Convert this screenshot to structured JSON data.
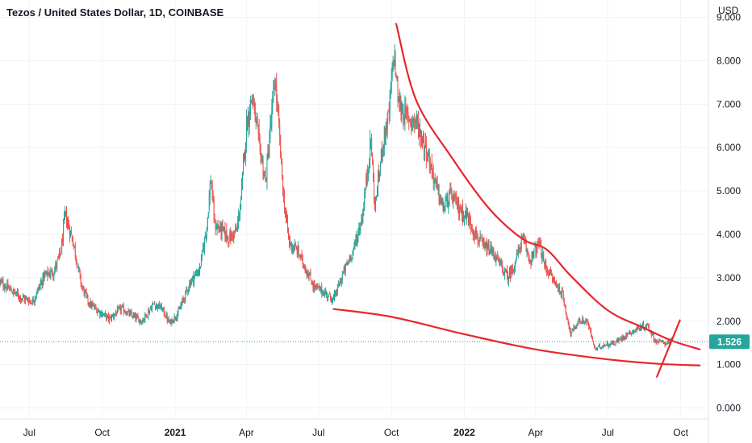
{
  "chart_data": {
    "type": "candlestick",
    "title": "Tezos / United States Dollar, 1D, COINBASE",
    "currency_label": "USD",
    "last_price": "1.526",
    "ylim": [
      -0.25,
      9.4
    ],
    "y_ticks": [
      "0.000",
      "1.000",
      "2.000",
      "3.000",
      "4.000",
      "5.000",
      "6.000",
      "7.000",
      "8.000",
      "9.000"
    ],
    "y_tick_values": [
      0,
      1,
      2,
      3,
      4,
      5,
      6,
      7,
      8,
      9
    ],
    "x_ticks": [
      {
        "label": "Jul",
        "date": "2020-07-01",
        "bold": false
      },
      {
        "label": "Oct",
        "date": "2020-10-01",
        "bold": false
      },
      {
        "label": "2021",
        "date": "2021-01-01",
        "bold": true
      },
      {
        "label": "Apr",
        "date": "2021-04-01",
        "bold": false
      },
      {
        "label": "Jul",
        "date": "2021-07-01",
        "bold": false
      },
      {
        "label": "Oct",
        "date": "2021-10-01",
        "bold": false
      },
      {
        "label": "2022",
        "date": "2022-01-01",
        "bold": true
      },
      {
        "label": "Apr",
        "date": "2022-04-01",
        "bold": false
      },
      {
        "label": "Jul",
        "date": "2022-07-01",
        "bold": false
      },
      {
        "label": "Oct",
        "date": "2022-10-01",
        "bold": false
      }
    ],
    "x_range": [
      "2020-05-25",
      "2022-11-05"
    ],
    "price_path": [
      [
        "2020-05-25",
        2.9
      ],
      [
        "2020-06-05",
        2.75
      ],
      [
        "2020-06-20",
        2.55
      ],
      [
        "2020-07-05",
        2.45
      ],
      [
        "2020-07-20",
        3.05
      ],
      [
        "2020-08-01",
        3.15
      ],
      [
        "2020-08-10",
        3.6
      ],
      [
        "2020-08-15",
        4.45
      ],
      [
        "2020-08-25",
        3.85
      ],
      [
        "2020-09-05",
        2.8
      ],
      [
        "2020-09-15",
        2.4
      ],
      [
        "2020-09-25",
        2.25
      ],
      [
        "2020-10-10",
        2.05
      ],
      [
        "2020-10-25",
        2.3
      ],
      [
        "2020-11-05",
        2.15
      ],
      [
        "2020-11-20",
        2.0
      ],
      [
        "2020-12-05",
        2.4
      ],
      [
        "2020-12-15",
        2.3
      ],
      [
        "2020-12-25",
        1.95
      ],
      [
        "2021-01-05",
        2.2
      ],
      [
        "2021-01-20",
        2.9
      ],
      [
        "2021-02-01",
        3.2
      ],
      [
        "2021-02-10",
        4.2
      ],
      [
        "2021-02-15",
        5.3
      ],
      [
        "2021-02-20",
        4.2
      ],
      [
        "2021-03-01",
        4.1
      ],
      [
        "2021-03-10",
        3.9
      ],
      [
        "2021-03-20",
        4.1
      ],
      [
        "2021-03-25",
        4.8
      ],
      [
        "2021-04-01",
        6.5
      ],
      [
        "2021-04-08",
        7.2
      ],
      [
        "2021-04-15",
        6.3
      ],
      [
        "2021-04-25",
        5.2
      ],
      [
        "2021-05-01",
        6.4
      ],
      [
        "2021-05-07",
        7.6
      ],
      [
        "2021-05-12",
        6.4
      ],
      [
        "2021-05-18",
        4.8
      ],
      [
        "2021-05-25",
        3.8
      ],
      [
        "2021-06-05",
        3.6
      ],
      [
        "2021-06-15",
        3.2
      ],
      [
        "2021-06-25",
        2.8
      ],
      [
        "2021-07-05",
        2.7
      ],
      [
        "2021-07-20",
        2.5
      ],
      [
        "2021-08-01",
        3.1
      ],
      [
        "2021-08-15",
        3.7
      ],
      [
        "2021-08-25",
        4.4
      ],
      [
        "2021-09-01",
        5.5
      ],
      [
        "2021-09-05",
        6.2
      ],
      [
        "2021-09-10",
        4.6
      ],
      [
        "2021-09-20",
        6.1
      ],
      [
        "2021-09-28",
        6.8
      ],
      [
        "2021-10-04",
        8.2
      ],
      [
        "2021-10-10",
        7.0
      ],
      [
        "2021-10-20",
        6.7
      ],
      [
        "2021-11-01",
        6.6
      ],
      [
        "2021-11-15",
        5.9
      ],
      [
        "2021-11-25",
        5.2
      ],
      [
        "2021-12-05",
        4.6
      ],
      [
        "2021-12-15",
        4.9
      ],
      [
        "2021-12-25",
        4.6
      ],
      [
        "2022-01-05",
        4.4
      ],
      [
        "2022-01-15",
        4.0
      ],
      [
        "2022-01-25",
        3.7
      ],
      [
        "2022-02-05",
        3.6
      ],
      [
        "2022-02-15",
        3.3
      ],
      [
        "2022-02-25",
        3.0
      ],
      [
        "2022-03-05",
        3.3
      ],
      [
        "2022-03-15",
        3.9
      ],
      [
        "2022-03-25",
        3.4
      ],
      [
        "2022-04-05",
        3.8
      ],
      [
        "2022-04-12",
        3.3
      ],
      [
        "2022-04-25",
        2.9
      ],
      [
        "2022-05-05",
        2.6
      ],
      [
        "2022-05-15",
        1.7
      ],
      [
        "2022-05-25",
        2.0
      ],
      [
        "2022-06-05",
        2.0
      ],
      [
        "2022-06-15",
        1.35
      ],
      [
        "2022-06-25",
        1.45
      ],
      [
        "2022-07-10",
        1.5
      ],
      [
        "2022-07-25",
        1.7
      ],
      [
        "2022-08-10",
        1.85
      ],
      [
        "2022-08-20",
        1.9
      ],
      [
        "2022-08-30",
        1.55
      ],
      [
        "2022-09-10",
        1.5
      ],
      [
        "2022-09-20",
        1.526
      ]
    ],
    "annotations": [
      {
        "type": "curve",
        "name": "upper-resistance-curve",
        "color": "#e8262d",
        "points": [
          [
            "2021-10-07",
            8.85
          ],
          [
            "2021-11-01",
            7.1
          ],
          [
            "2021-12-15",
            5.8
          ],
          [
            "2022-02-01",
            4.6
          ],
          [
            "2022-03-15",
            3.9
          ],
          [
            "2022-04-15",
            3.65
          ],
          [
            "2022-05-15",
            3.05
          ],
          [
            "2022-07-01",
            2.25
          ],
          [
            "2022-08-15",
            1.85
          ],
          [
            "2022-09-20",
            1.55
          ],
          [
            "2022-10-25",
            1.35
          ]
        ]
      },
      {
        "type": "curve",
        "name": "lower-support-curve",
        "color": "#e8262d",
        "points": [
          [
            "2021-07-20",
            2.28
          ],
          [
            "2021-10-01",
            2.1
          ],
          [
            "2022-01-01",
            1.7
          ],
          [
            "2022-04-01",
            1.35
          ],
          [
            "2022-07-01",
            1.12
          ],
          [
            "2022-09-01",
            1.02
          ],
          [
            "2022-10-25",
            0.98
          ]
        ]
      },
      {
        "type": "line",
        "name": "cross-mark-line",
        "color": "#e8262d",
        "points": [
          [
            "2022-09-01",
            0.72
          ],
          [
            "2022-09-30",
            2.02
          ]
        ]
      }
    ],
    "colors": {
      "up": "#26a69a",
      "down": "#ef5350",
      "grid": "#f0f3fa",
      "axis_text": "#131722",
      "annotation": "#e8262d",
      "price_badge": "#26a69a",
      "price_line": "#26a69a"
    },
    "grid": true
  }
}
